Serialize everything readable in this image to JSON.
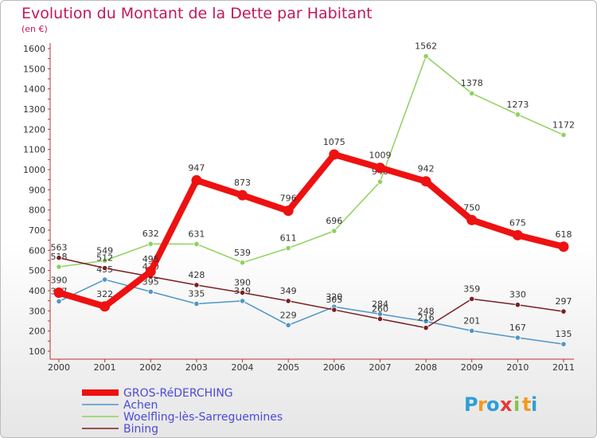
{
  "chart_data": {
    "type": "line",
    "title": "Evolution du Montant de la Dette par Habitant",
    "subtitle": "(en €)",
    "x": [
      "2000",
      "2001",
      "2002",
      "2003",
      "2004",
      "2005",
      "2006",
      "2007",
      "2008",
      "2009",
      "2010",
      "2011"
    ],
    "ylim": [
      100,
      1600
    ],
    "yticks": [
      100,
      200,
      300,
      400,
      500,
      600,
      700,
      800,
      900,
      1000,
      1100,
      1200,
      1300,
      1400,
      1500,
      1600
    ],
    "grid": false,
    "legend_position": "bottom-left",
    "series": [
      {
        "name": "Achen",
        "color": "#4f95c8",
        "values": [
          347,
          455,
          395,
          335,
          349,
          229,
          320,
          284,
          248,
          201,
          167,
          135
        ]
      },
      {
        "name": "Woelfling-lès-Sarreguemines",
        "color": "#8fd15e",
        "values": [
          518,
          549,
          632,
          631,
          539,
          611,
          696,
          940,
          1562,
          1378,
          1273,
          1172
        ]
      },
      {
        "name": "Bining",
        "color": "#7a1f22",
        "values": [
          563,
          512,
          470,
          428,
          390,
          349,
          305,
          260,
          216,
          359,
          330,
          297
        ]
      },
      {
        "name": "GROS-RéDERCHING",
        "color": "#ee1111",
        "values": [
          390,
          322,
          495,
          947,
          873,
          796,
          1075,
          1009,
          942,
          750,
          675,
          618
        ]
      }
    ]
  },
  "legend": {
    "items": [
      {
        "name": "GROS-RéDERCHING",
        "color": "#ee1111"
      },
      {
        "name": "Achen",
        "color": "#4f95c8"
      },
      {
        "name": "Woelfling-lès-Sarreguemines",
        "color": "#8fd15e"
      },
      {
        "name": "Bining",
        "color": "#7a1f22"
      }
    ]
  },
  "brand": {
    "letters": [
      "P",
      "r",
      "o",
      "x",
      "i",
      "t",
      "i"
    ],
    "colors": [
      "#2f9fd8",
      "#f39a1f",
      "#2f9fd8",
      "#e53935",
      "#8bc34a",
      "#f39a1f",
      "#2f9fd8"
    ]
  }
}
